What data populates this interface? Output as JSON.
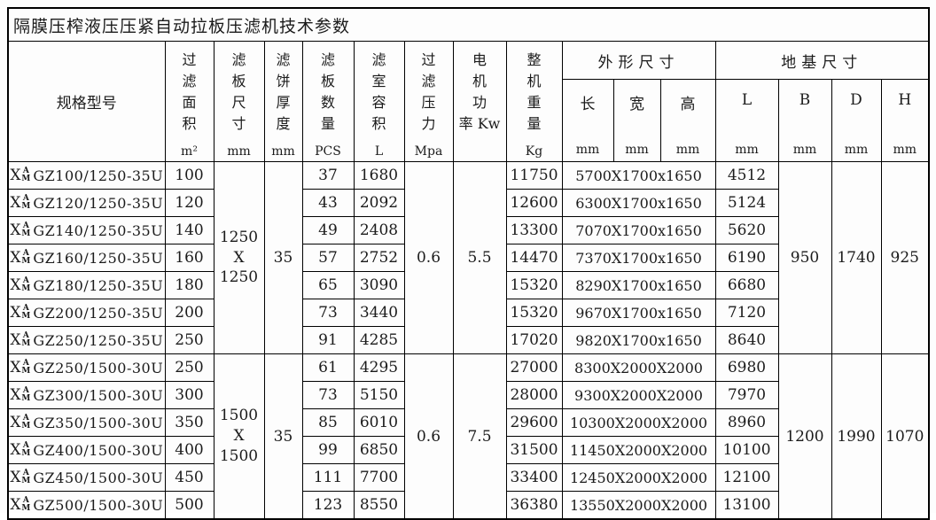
{
  "title": "隔膜压榨液压压紧自动拉板压滤机技术参数",
  "model_prefix": {
    "base": "X",
    "sup": "A",
    "sub": "M"
  },
  "table": {
    "headers": {
      "model": "规格型号",
      "area_lines": "过\n滤\n面\n积",
      "area_unit": "m²",
      "plate_size_lines": "滤\n板\n尺\n寸",
      "plate_size_unit": "mm",
      "cake_lines": "滤\n饼\n厚\n度",
      "cake_unit": "mm",
      "qty_lines": "滤\n板\n数\n量",
      "qty_unit": "PCS",
      "volume_lines": "滤\n室\n容\n积",
      "volume_unit": "L",
      "pressure_lines": "过\n滤\n压\n力",
      "pressure_unit": "Mpa",
      "power_lines": "电\n机\n功\n率 Kw",
      "weight_lines": "整\n机\n重\n量",
      "weight_unit": "Kg",
      "overall": "外形尺寸",
      "foundation": "地基尺寸",
      "sub": {
        "length": "长",
        "width": "宽",
        "height": "高",
        "L": "L",
        "B": "B",
        "D": "D",
        "H": "H",
        "unit": "mm"
      }
    },
    "groups": [
      {
        "plate_size": "1250\nX\n1250",
        "cake_thickness": "35",
        "pressure": "0.6",
        "power": "5.5",
        "B": "950",
        "D": "1740",
        "H": "925",
        "rows": [
          {
            "model": "GZ100/1250-35U",
            "area": "100",
            "pcs": "37",
            "volume": "1680",
            "weight": "11750",
            "dims": "5700X1700x1650",
            "L": "4512"
          },
          {
            "model": "GZ120/1250-35U",
            "area": "120",
            "pcs": "43",
            "volume": "2092",
            "weight": "12600",
            "dims": "6300X1700x1650",
            "L": "5124"
          },
          {
            "model": "GZ140/1250-35U",
            "area": "140",
            "pcs": "49",
            "volume": "2408",
            "weight": "13300",
            "dims": "7070X1700x1650",
            "L": "5620"
          },
          {
            "model": "GZ160/1250-35U",
            "area": "160",
            "pcs": "57",
            "volume": "2752",
            "weight": "14470",
            "dims": "7370X1700x1650",
            "L": "6190"
          },
          {
            "model": "GZ180/1250-35U",
            "area": "180",
            "pcs": "65",
            "volume": "3090",
            "weight": "15320",
            "dims": "8290X1700x1650",
            "L": "6680"
          },
          {
            "model": "GZ200/1250-35U",
            "area": "200",
            "pcs": "73",
            "volume": "3440",
            "weight": "15320",
            "dims": "9670X1700x1650",
            "L": "7120"
          },
          {
            "model": "GZ250/1250-35U",
            "area": "250",
            "pcs": "91",
            "volume": "4285",
            "weight": "17020",
            "dims": "9820X1700x1650",
            "L": "8640"
          }
        ]
      },
      {
        "plate_size": "1500\nX\n1500",
        "cake_thickness": "35",
        "pressure": "0.6",
        "power": "7.5",
        "B": "1200",
        "D": "1990",
        "H": "1070",
        "rows": [
          {
            "model": "GZ250/1500-30U",
            "area": "250",
            "pcs": "61",
            "volume": "4295",
            "weight": "27000",
            "dims": "8300X2000X2000",
            "L": "6980"
          },
          {
            "model": "GZ300/1500-30U",
            "area": "300",
            "pcs": "73",
            "volume": "5150",
            "weight": "28000",
            "dims": "9300X2000X2000",
            "L": "7970"
          },
          {
            "model": "GZ350/1500-30U",
            "area": "350",
            "pcs": "85",
            "volume": "6010",
            "weight": "29600",
            "dims": "10300X2000X2000",
            "L": "8960"
          },
          {
            "model": "GZ400/1500-30U",
            "area": "400",
            "pcs": "99",
            "volume": "6850",
            "weight": "31500",
            "dims": "11450X2000X2000",
            "L": "10100"
          },
          {
            "model": "GZ450/1500-30U",
            "area": "450",
            "pcs": "111",
            "volume": "7700",
            "weight": "33400",
            "dims": "12450X2000X2000",
            "L": "12100"
          },
          {
            "model": "GZ500/1500-30U",
            "area": "500",
            "pcs": "123",
            "volume": "8550",
            "weight": "36380",
            "dims": "13550X2000X2000",
            "L": "13100"
          }
        ]
      }
    ]
  }
}
